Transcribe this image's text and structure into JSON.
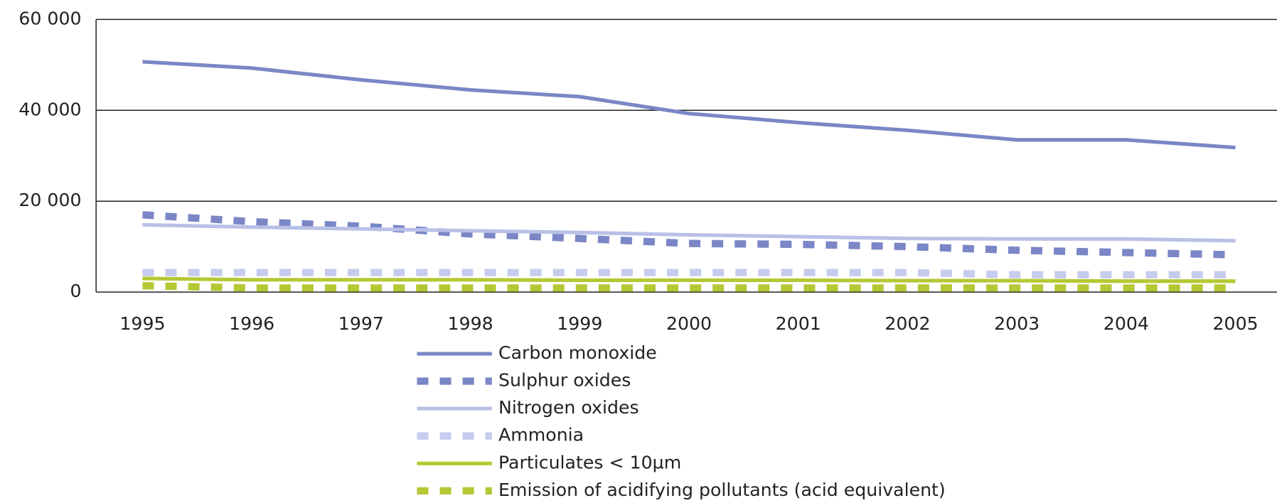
{
  "chart_data": {
    "type": "line",
    "categories": [
      "1995",
      "1996",
      "1997",
      "1998",
      "1999",
      "2000",
      "2001",
      "2002",
      "2003",
      "2004",
      "2005"
    ],
    "ylim": [
      0,
      60000
    ],
    "yticks": [
      {
        "value": 0,
        "label": "0"
      },
      {
        "value": 20000,
        "label": "20 000"
      },
      {
        "value": 40000,
        "label": "40 000"
      },
      {
        "value": 60000,
        "label": "60 000"
      }
    ],
    "grid": true,
    "legend": "bottom",
    "series": [
      {
        "name": "Carbon monoxide",
        "color": "#7b86c6",
        "dashed": false,
        "values": [
          50700,
          49300,
          46700,
          44500,
          43000,
          39300,
          37300,
          35600,
          33500,
          33500,
          31800
        ]
      },
      {
        "name": "Sulphur oxides",
        "color": "#7b86c6",
        "dashed": true,
        "values": [
          17000,
          15500,
          14500,
          12800,
          11800,
          10700,
          10500,
          10000,
          9200,
          8700,
          8200
        ]
      },
      {
        "name": "Nitrogen oxides",
        "color": "#b9c0e6",
        "dashed": false,
        "values": [
          14800,
          14300,
          13900,
          13500,
          13100,
          12600,
          12200,
          11800,
          11700,
          11700,
          11300
        ]
      },
      {
        "name": "Ammonia",
        "color": "#c6cced",
        "dashed": true,
        "values": [
          4300,
          4300,
          4300,
          4300,
          4300,
          4300,
          4300,
          4300,
          3800,
          3800,
          3800
        ]
      },
      {
        "name": "Particulates < 10µm",
        "color": "#b5c834",
        "dashed": false,
        "values": [
          3000,
          2700,
          2700,
          2700,
          2600,
          2600,
          2600,
          2500,
          2500,
          2400,
          2400
        ]
      },
      {
        "name": "Emission of acidifying pollutants (acid equivalent)",
        "color": "#b5c834",
        "dashed": true,
        "values": [
          1400,
          900,
          900,
          900,
          900,
          900,
          900,
          900,
          900,
          900,
          900
        ]
      }
    ]
  }
}
